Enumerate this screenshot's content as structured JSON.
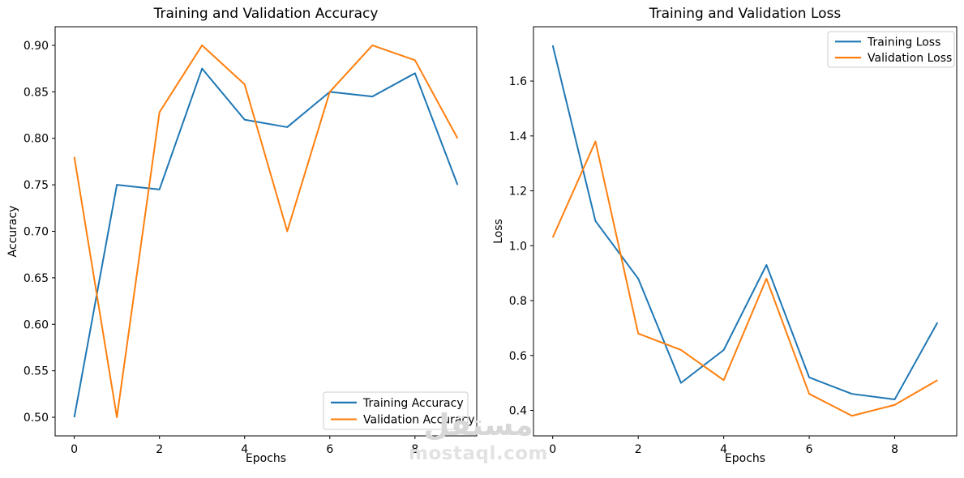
{
  "figure": {
    "background": "#ffffff",
    "text_color": "#000000",
    "spine_color": "#000000",
    "legend_border_color": "#cccccc"
  },
  "watermark": {
    "logo": "مستقل",
    "site": "mostaql.com",
    "logo_color": "#d7d7d7",
    "site_color": "#e2e2e2"
  },
  "chart_data": [
    {
      "type": "line",
      "title": "Training and Validation Accuracy",
      "xlabel": "Epochs",
      "ylabel": "Accuracy",
      "x": [
        0,
        1,
        2,
        3,
        4,
        5,
        6,
        7,
        8,
        9
      ],
      "series": [
        {
          "name": "Training Accuracy",
          "color": "#1f77b4",
          "values": [
            0.5,
            0.75,
            0.745,
            0.875,
            0.82,
            0.812,
            0.85,
            0.845,
            0.87,
            0.75
          ]
        },
        {
          "name": "Validation Accuracy",
          "color": "#ff7f0e",
          "values": [
            0.78,
            0.5,
            0.828,
            0.9,
            0.858,
            0.7,
            0.85,
            0.9,
            0.884,
            0.8
          ]
        }
      ],
      "xlim": [
        -0.45,
        9.45
      ],
      "ylim": [
        0.48,
        0.92
      ],
      "xticks": [
        0,
        2,
        4,
        6,
        8
      ],
      "xtick_labels": [
        "0",
        "2",
        "4",
        "6",
        "8"
      ],
      "yticks": [
        0.5,
        0.55,
        0.6,
        0.65,
        0.7,
        0.75,
        0.8,
        0.85,
        0.9
      ],
      "ytick_labels": [
        "0.50",
        "0.55",
        "0.60",
        "0.65",
        "0.70",
        "0.75",
        "0.80",
        "0.85",
        "0.90"
      ],
      "grid": false,
      "legend_position": "lower right"
    },
    {
      "type": "line",
      "title": "Training and Validation Loss",
      "xlabel": "Epochs",
      "ylabel": "Loss",
      "x": [
        0,
        1,
        2,
        3,
        4,
        5,
        6,
        7,
        8,
        9
      ],
      "series": [
        {
          "name": "Training Loss",
          "color": "#1f77b4",
          "values": [
            1.73,
            1.09,
            0.88,
            0.5,
            0.62,
            0.93,
            0.52,
            0.46,
            0.44,
            0.72
          ]
        },
        {
          "name": "Validation Loss",
          "color": "#ff7f0e",
          "values": [
            1.03,
            1.38,
            0.68,
            0.62,
            0.51,
            0.88,
            0.46,
            0.38,
            0.42,
            0.51
          ]
        }
      ],
      "xlim": [
        -0.45,
        9.45
      ],
      "ylim": [
        0.307,
        1.798
      ],
      "xticks": [
        0,
        2,
        4,
        6,
        8
      ],
      "xtick_labels": [
        "0",
        "2",
        "4",
        "6",
        "8"
      ],
      "yticks": [
        0.4,
        0.6,
        0.8,
        1.0,
        1.2,
        1.4,
        1.6
      ],
      "ytick_labels": [
        "0.4",
        "0.6",
        "0.8",
        "1.0",
        "1.2",
        "1.4",
        "1.6"
      ],
      "grid": false,
      "legend_position": "upper right"
    }
  ]
}
